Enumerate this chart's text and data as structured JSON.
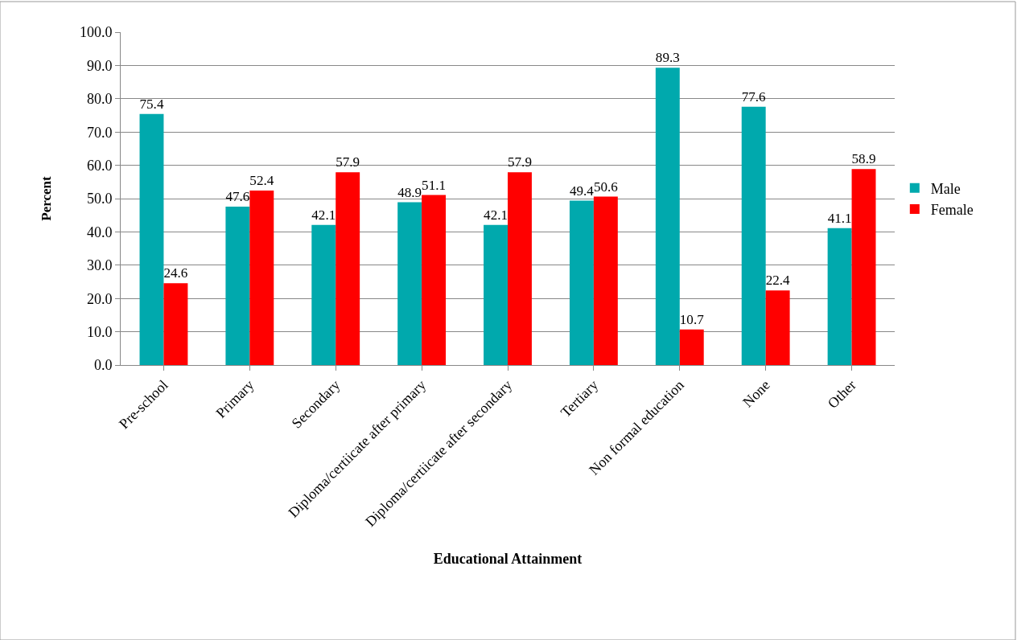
{
  "chart_data": {
    "type": "bar",
    "xlabel": "Educational Attainment",
    "ylabel": "Percent",
    "categories": [
      "Pre-school",
      "Primary",
      "Secondary",
      "Diploma/certiicate after primary",
      "Diploma/certiicate after secondary",
      "Tertiary",
      "Non formal education",
      "None",
      "Other"
    ],
    "series": [
      {
        "name": "Male",
        "color": "#00a9ad",
        "values": [
          75.4,
          47.6,
          42.1,
          48.9,
          42.1,
          49.4,
          89.3,
          77.6,
          41.1
        ]
      },
      {
        "name": "Female",
        "color": "#ff0000",
        "values": [
          24.6,
          52.4,
          57.9,
          51.1,
          57.9,
          50.6,
          10.7,
          22.4,
          58.9
        ]
      }
    ],
    "ylim": [
      0,
      100
    ],
    "yticks": [
      {
        "value": 0,
        "label": "0.0"
      },
      {
        "value": 10,
        "label": "10.0"
      },
      {
        "value": 20,
        "label": "20.0"
      },
      {
        "value": 30,
        "label": "30.0"
      },
      {
        "value": 40,
        "label": "40.0"
      },
      {
        "value": 50,
        "label": "50.0"
      },
      {
        "value": 60,
        "label": "60.0"
      },
      {
        "value": 70,
        "label": "70.0"
      },
      {
        "value": 80,
        "label": "80.0"
      },
      {
        "value": 90,
        "label": "90.0"
      },
      {
        "value": 100,
        "label": "100.0"
      }
    ],
    "data_labels": true,
    "grid": "y",
    "legend": "right"
  }
}
